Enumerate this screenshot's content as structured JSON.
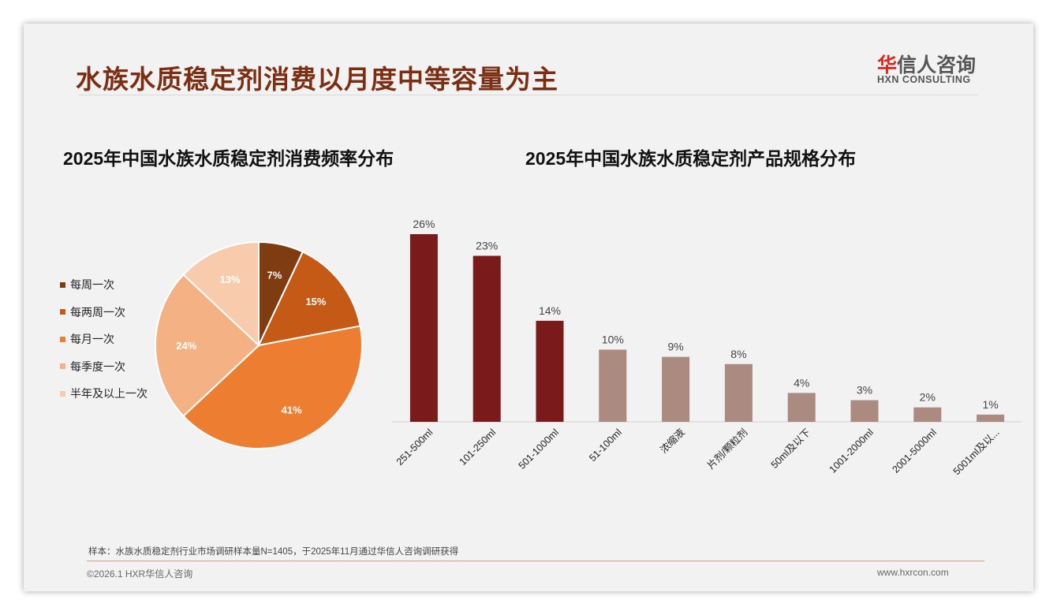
{
  "header": {
    "title": "水族水质稳定剂消费以月度中等容量为主",
    "logo_cn": "华信人咨询",
    "logo_cn_accent": "华",
    "logo_en": "HXN CONSULTING"
  },
  "footer": {
    "note": "样本：水族水质稳定剂行业市场调研样本量N=1405，于2025年11月通过华信人咨询调研获得",
    "copyright": "©2026.1 HXR华信人咨询",
    "url": "www.hxrcon.com"
  },
  "chart_data": [
    {
      "type": "pie",
      "title": "2025年中国水族水质稳定剂消费频率分布",
      "legend_position": "left",
      "labels": [
        "每周一次",
        "每两周一次",
        "每月一次",
        "每季度一次",
        "半年及以上一次"
      ],
      "values": [
        7,
        15,
        41,
        24,
        13
      ],
      "colors": [
        "#7f3c10",
        "#c55a17",
        "#ed7d31",
        "#f4b183",
        "#f8cbad"
      ]
    },
    {
      "type": "bar",
      "title": "2025年中国水族水质稳定剂产品规格分布",
      "categories": [
        "251-500ml",
        "101-250ml",
        "501-1000ml",
        "51-100ml",
        "浓缩液",
        "片剂/颗粒剂",
        "50ml及以下",
        "1001-2000ml",
        "2001-5000ml",
        "5001ml及以..."
      ],
      "values": [
        26,
        23,
        14,
        10,
        9,
        8,
        4,
        3,
        2,
        1
      ],
      "colors": [
        "#7a1a1a",
        "#7a1a1a",
        "#7a1a1a",
        "#ab8a80",
        "#ab8a80",
        "#ab8a80",
        "#ab8a80",
        "#ab8a80",
        "#ab8a80",
        "#ab8a80"
      ],
      "ylim": [
        0,
        26
      ]
    }
  ]
}
